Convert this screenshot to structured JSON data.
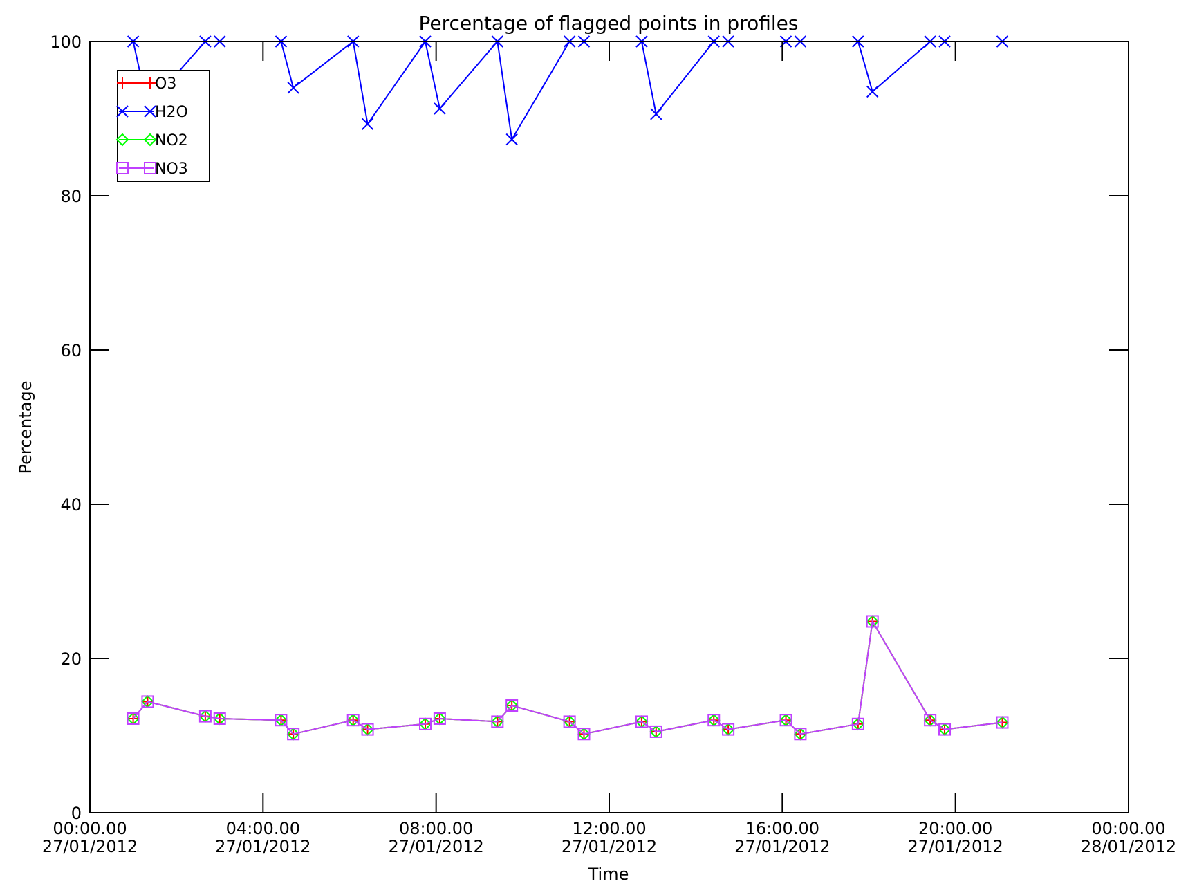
{
  "chart_data": {
    "type": "line",
    "title": "Percentage of flagged points in profiles",
    "xlabel": "Time",
    "ylabel": "Percentage",
    "xlim": [
      "2012-01-27T00:00",
      "2012-01-28T00:00"
    ],
    "ylim": [
      0,
      100
    ],
    "grid": false,
    "legend": "top-left",
    "yticks": [
      0,
      20,
      40,
      60,
      80,
      100
    ],
    "ytick_labels": [
      "0",
      "20",
      "40",
      "60",
      "80",
      "100"
    ],
    "xticks": [
      {
        "value": "2012-01-27T00:00",
        "time": "00:00.00",
        "date": "27/01/2012"
      },
      {
        "value": "2012-01-27T04:00",
        "time": "04:00.00",
        "date": "27/01/2012"
      },
      {
        "value": "2012-01-27T08:00",
        "time": "08:00.00",
        "date": "27/01/2012"
      },
      {
        "value": "2012-01-27T12:00",
        "time": "12:00.00",
        "date": "27/01/2012"
      },
      {
        "value": "2012-01-27T16:00",
        "time": "16:00.00",
        "date": "27/01/2012"
      },
      {
        "value": "2012-01-27T20:00",
        "time": "20:00.00",
        "date": "27/01/2012"
      },
      {
        "value": "2012-01-28T00:00",
        "time": "00:00.00",
        "date": "28/01/2012"
      }
    ],
    "x": [
      "2012-01-27T01:00",
      "2012-01-27T01:20",
      "2012-01-27T02:40",
      "2012-01-27T03:00",
      "2012-01-27T04:25",
      "2012-01-27T04:42",
      "2012-01-27T06:05",
      "2012-01-27T06:25",
      "2012-01-27T07:45",
      "2012-01-27T08:05",
      "2012-01-27T09:25",
      "2012-01-27T09:45",
      "2012-01-27T11:05",
      "2012-01-27T11:25",
      "2012-01-27T12:45",
      "2012-01-27T13:05",
      "2012-01-27T14:25",
      "2012-01-27T14:45",
      "2012-01-27T16:05",
      "2012-01-27T16:25",
      "2012-01-27T17:45",
      "2012-01-27T18:05",
      "2012-01-27T19:25",
      "2012-01-27T19:45",
      "2012-01-27T21:05"
    ],
    "series": [
      {
        "name": "O3",
        "color": "#ff0000",
        "marker": "plus",
        "values": [
          12.2,
          14.4,
          12.5,
          12.2,
          12.0,
          10.2,
          12.0,
          10.8,
          11.5,
          12.2,
          11.8,
          13.9,
          11.8,
          10.2,
          11.8,
          10.5,
          12.0,
          10.8,
          12.0,
          10.2,
          11.5,
          24.8,
          12.0,
          10.8,
          11.7
        ]
      },
      {
        "name": "H2O",
        "color": "#0000ff",
        "marker": "x",
        "values": [
          100,
          91.5,
          100,
          100,
          100,
          94.0,
          100,
          89.3,
          100,
          91.3,
          100,
          87.3,
          100,
          100,
          100,
          90.6,
          100,
          100,
          100,
          100,
          100,
          93.5,
          100,
          100,
          100
        ]
      },
      {
        "name": "NO2",
        "color": "#00ff00",
        "marker": "diamond",
        "values": [
          12.2,
          14.4,
          12.5,
          12.2,
          12.0,
          10.2,
          12.0,
          10.8,
          11.5,
          12.2,
          11.8,
          13.9,
          11.8,
          10.2,
          11.8,
          10.5,
          12.0,
          10.8,
          12.0,
          10.2,
          11.5,
          24.8,
          12.0,
          10.8,
          11.7
        ]
      },
      {
        "name": "NO3",
        "color": "#c040ff",
        "marker": "square",
        "values": [
          12.2,
          14.4,
          12.5,
          12.2,
          12.0,
          10.2,
          12.0,
          10.8,
          11.5,
          12.2,
          11.8,
          13.9,
          11.8,
          10.2,
          11.8,
          10.5,
          12.0,
          10.8,
          12.0,
          10.2,
          11.5,
          24.8,
          12.0,
          10.8,
          11.7
        ]
      }
    ]
  }
}
